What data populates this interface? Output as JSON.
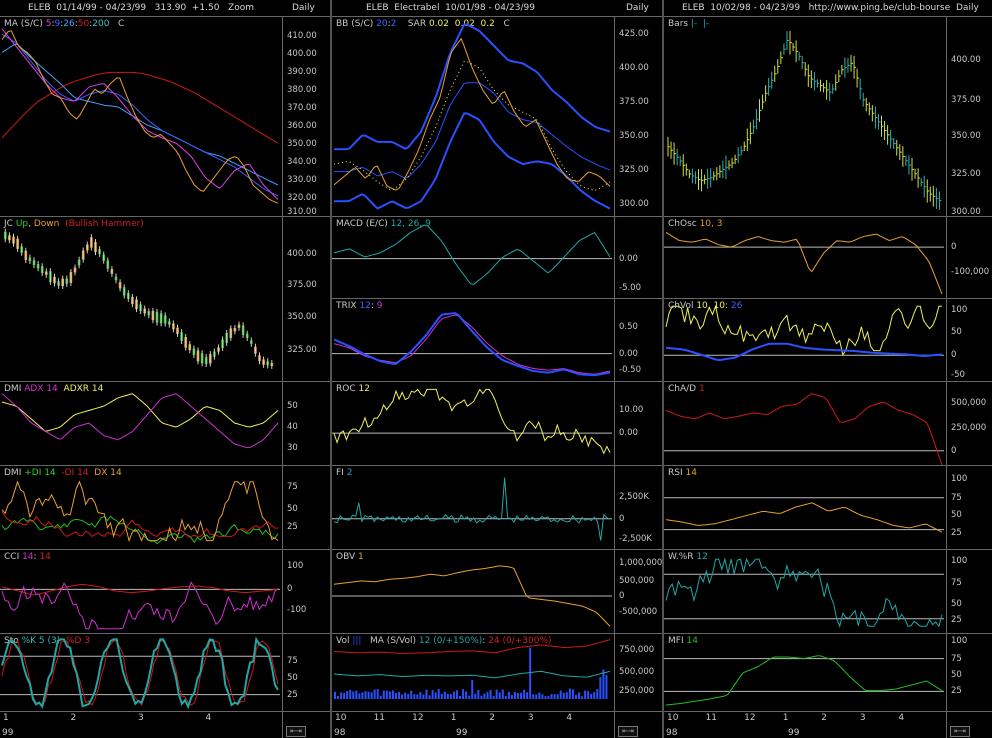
{
  "columns": [
    {
      "header": "ELEB  01/14/99 - 04/23/99   313.90  +1.50   Zoom",
      "daily": "Daily",
      "x": [
        1,
        2,
        3,
        4
      ],
      "yearLabel": "99"
    },
    {
      "header": "ELEB  Electrabel  10/01/98 - 04/23/99",
      "daily": "Daily",
      "x": [
        10,
        11,
        12,
        1,
        2,
        3,
        4
      ],
      "yearLabel": "98",
      "yearLabel2": "99"
    },
    {
      "header": "ELEB  10/02/98 - 04/23/99   http://www.ping.be/club-bourse",
      "daily": "Daily",
      "x": [
        10,
        11,
        12,
        1,
        2,
        3,
        4
      ],
      "yearLabel": "98",
      "yearLabel2": "99"
    }
  ],
  "colors": {
    "bg": "#000000",
    "grid": "#666666",
    "orange": "#e8a030",
    "red": "#d01818",
    "blue": "#2a50ff",
    "yellow": "#f0f060",
    "cyan": "#20a8a8",
    "magenta": "#d030d0",
    "green": "#20c020",
    "white": "#d0d0d0"
  },
  "panels": {
    "c1": [
      {
        "id": "ma",
        "label": [
          "MA (S/C) ",
          "5",
          ":",
          "9",
          ":",
          "26",
          ":",
          "50",
          ":",
          "200",
          "   C"
        ],
        "labelColors": [
          "#c8c8c8",
          "#e040e0",
          "#c8c8c8",
          "#4060ff",
          "#c8c8c8",
          "#40a0ff",
          "#c8c8c8",
          "#d02020",
          "#c8c8c8",
          "#40c0c0",
          "#c8c8c8"
        ],
        "ticks": [
          "410.00",
          "400.00",
          "390.00",
          "380.00",
          "370.00",
          "360.00",
          "350.00",
          "340.00",
          "330.00",
          "320.00",
          "310.00"
        ]
      },
      {
        "id": "jc",
        "label": [
          "JC ",
          "Up",
          ", ",
          "Down",
          "  ",
          "(Bullish Hammer)"
        ],
        "labelColors": [
          "#c8c8c8",
          "#30d030",
          "#c8c8c8",
          "#e8a030",
          "#c8c8c8",
          "#d02020"
        ],
        "ticks": [
          "400.00",
          "375.00",
          "350.00",
          "325.00"
        ]
      },
      {
        "id": "dmi1",
        "label": [
          "DMI ",
          "ADX 14",
          "  ",
          "ADXR 14"
        ],
        "labelColors": [
          "#c8c8c8",
          "#d030d0",
          "#c8c8c8",
          "#f0f060"
        ],
        "ticks": [
          "50",
          "40",
          "30"
        ]
      },
      {
        "id": "dmi2",
        "label": [
          "DMI ",
          "+DI 14",
          "  ",
          "-DI 14",
          "  ",
          "DX 14"
        ],
        "labelColors": [
          "#c8c8c8",
          "#30d030",
          "#c8c8c8",
          "#d02020",
          "#c8c8c8",
          "#e8a030"
        ],
        "ticks": [
          "75",
          "50",
          "25"
        ]
      },
      {
        "id": "cci",
        "label": [
          "CCI ",
          "14",
          ": ",
          "14"
        ],
        "labelColors": [
          "#c8c8c8",
          "#d030d0",
          "#c8c8c8",
          "#d02020"
        ],
        "ticks": [
          "100",
          "0",
          "-100"
        ]
      },
      {
        "id": "sto",
        "label": [
          "Sto ",
          "%K 5 (3)",
          "  ",
          "%D 3"
        ],
        "labelColors": [
          "#c8c8c8",
          "#20c0c0",
          "#c8c8c8",
          "#d02020"
        ],
        "ticks": [
          "75",
          "50",
          "25"
        ]
      }
    ],
    "c2": [
      {
        "id": "bb",
        "label": [
          "BB (S/C) ",
          "20",
          ":",
          "2",
          "    SAR ",
          "0.02",
          "  ",
          "0.02",
          "  ",
          "0.2",
          "   C"
        ],
        "labelColors": [
          "#c8c8c8",
          "#4060ff",
          "#c8c8c8",
          "#4060ff",
          "#c8c8c8",
          "#f0f060",
          "#c8c8c8",
          "#f0f060",
          "#c8c8c8",
          "#f0f060",
          "#c8c8c8"
        ],
        "ticks": [
          "425.00",
          "400.00",
          "375.00",
          "350.00",
          "325.00",
          "300.00"
        ]
      },
      {
        "id": "macd",
        "label": [
          "MACD (E/C) ",
          "12, 26, 9"
        ],
        "labelColors": [
          "#c8c8c8",
          "#20a8a8"
        ],
        "ticks": [
          "0.00",
          "-5.00"
        ]
      },
      {
        "id": "trix",
        "label": [
          "TRIX ",
          "12",
          ": ",
          "9"
        ],
        "labelColors": [
          "#c8c8c8",
          "#4060ff",
          "#c8c8c8",
          "#d030d0"
        ],
        "ticks": [
          "0.50",
          "0.00",
          "-0.50"
        ]
      },
      {
        "id": "roc",
        "label": [
          "ROC ",
          "12"
        ],
        "labelColors": [
          "#c8c8c8",
          "#f0f060"
        ],
        "ticks": [
          "10.00",
          "0.00"
        ]
      },
      {
        "id": "fi",
        "label": [
          "FI ",
          "2"
        ],
        "labelColors": [
          "#c8c8c8",
          "#20a8a8"
        ],
        "ticks": [
          "2,500K",
          "0",
          "-2,500K"
        ]
      },
      {
        "id": "obv",
        "label": [
          "OBV ",
          "1"
        ],
        "labelColors": [
          "#c8c8c8",
          "#e8a030"
        ],
        "ticks": [
          "1,000,000",
          "500,000",
          "0",
          "-500,000"
        ]
      },
      {
        "id": "vol",
        "label": [
          "Vol ",
          "|||",
          "   MA (S/Vol) ",
          "12 (0/+150%)",
          ": ",
          "24 (0/+300%)"
        ],
        "labelColors": [
          "#c8c8c8",
          "#2a50ff",
          "#c8c8c8",
          "#20a8a8",
          "#c8c8c8",
          "#d02020"
        ],
        "ticks": [
          "750,000",
          "500,000",
          "250,000"
        ]
      }
    ],
    "c3": [
      {
        "id": "bars",
        "label": [
          "Bars ",
          "|-",
          "  ",
          "|-"
        ],
        "labelColors": [
          "#c8c8c8",
          "#20a8a8",
          "#c8c8c8",
          "#20a8a8"
        ],
        "ticks": [
          "400.00",
          "375.00",
          "350.00",
          "325.00",
          "300.00"
        ]
      },
      {
        "id": "chosc",
        "label": [
          "ChOsc ",
          "10, 3"
        ],
        "labelColors": [
          "#c8c8c8",
          "#e8a030"
        ],
        "ticks": [
          "0",
          "-100,000"
        ]
      },
      {
        "id": "chvol",
        "label": [
          "ChVol ",
          "10, 10",
          ": ",
          "26"
        ],
        "labelColors": [
          "#c8c8c8",
          "#f0f060",
          "#c8c8c8",
          "#4060ff"
        ],
        "ticks": [
          "100",
          "50",
          "0",
          "-50"
        ]
      },
      {
        "id": "chad",
        "label": [
          "ChA/D ",
          "1"
        ],
        "labelColors": [
          "#c8c8c8",
          "#d02020"
        ],
        "ticks": [
          "500,000",
          "250,000",
          "0"
        ]
      },
      {
        "id": "rsi",
        "label": [
          "RSI ",
          "14"
        ],
        "labelColors": [
          "#c8c8c8",
          "#e8a030"
        ],
        "ticks": [
          "100",
          "75",
          "50",
          "25"
        ]
      },
      {
        "id": "wr",
        "label": [
          "W.%R ",
          "12"
        ],
        "labelColors": [
          "#c8c8c8",
          "#20a8a8"
        ],
        "ticks": [
          "100",
          "75",
          "50",
          "25"
        ]
      },
      {
        "id": "mfi",
        "label": [
          "MFI ",
          "14"
        ],
        "labelColors": [
          "#c8c8c8",
          "#20c020"
        ],
        "ticks": [
          "100",
          "75",
          "50",
          "25"
        ]
      }
    ]
  },
  "chart_data": [
    {
      "type": "line",
      "title": "ELEB 01/14/99 - 04/23/99",
      "panel": "MA (S/C)",
      "series": [
        {
          "name": "C",
          "values": [
            402,
            408,
            398,
            395,
            390,
            380,
            372,
            370,
            362,
            358,
            366,
            375,
            372,
            378,
            382,
            370,
            360,
            352,
            348,
            350,
            345,
            340,
            330,
            322,
            318,
            324,
            330,
            336,
            338,
            332,
            322,
            318,
            314,
            312
          ]
        },
        {
          "name": "MA 200",
          "values": [
            348,
            355,
            362,
            368,
            372,
            376,
            379,
            381,
            383,
            384,
            384,
            384,
            383,
            381,
            379,
            376,
            373,
            369,
            365,
            361,
            357,
            353,
            349,
            345
          ]
        }
      ],
      "ylim": [
        305,
        415
      ]
    },
    {
      "type": "line",
      "title": "ELEB Electrabel 10/01/98 - 04/23/99",
      "panel": "BB (S/C)",
      "series": [
        {
          "name": "C",
          "values": [
            316,
            322,
            328,
            320,
            330,
            315,
            312,
            325,
            340,
            360,
            375,
            405,
            415,
            395,
            380,
            370,
            380,
            365,
            355,
            360,
            345,
            330,
            320,
            318,
            325,
            322,
            315
          ]
        }
      ],
      "ylim": [
        295,
        430
      ]
    },
    {
      "type": "bar",
      "title": "ELEB 10/02/98 - 04/23/99",
      "panel": "Bars",
      "values": [
        340,
        332,
        322,
        318,
        320,
        325,
        330,
        340,
        355,
        375,
        390,
        410,
        400,
        385,
        380,
        375,
        390,
        395,
        370,
        360,
        350,
        340,
        330,
        320,
        310,
        305
      ],
      "ylim": [
        295,
        425
      ]
    }
  ]
}
